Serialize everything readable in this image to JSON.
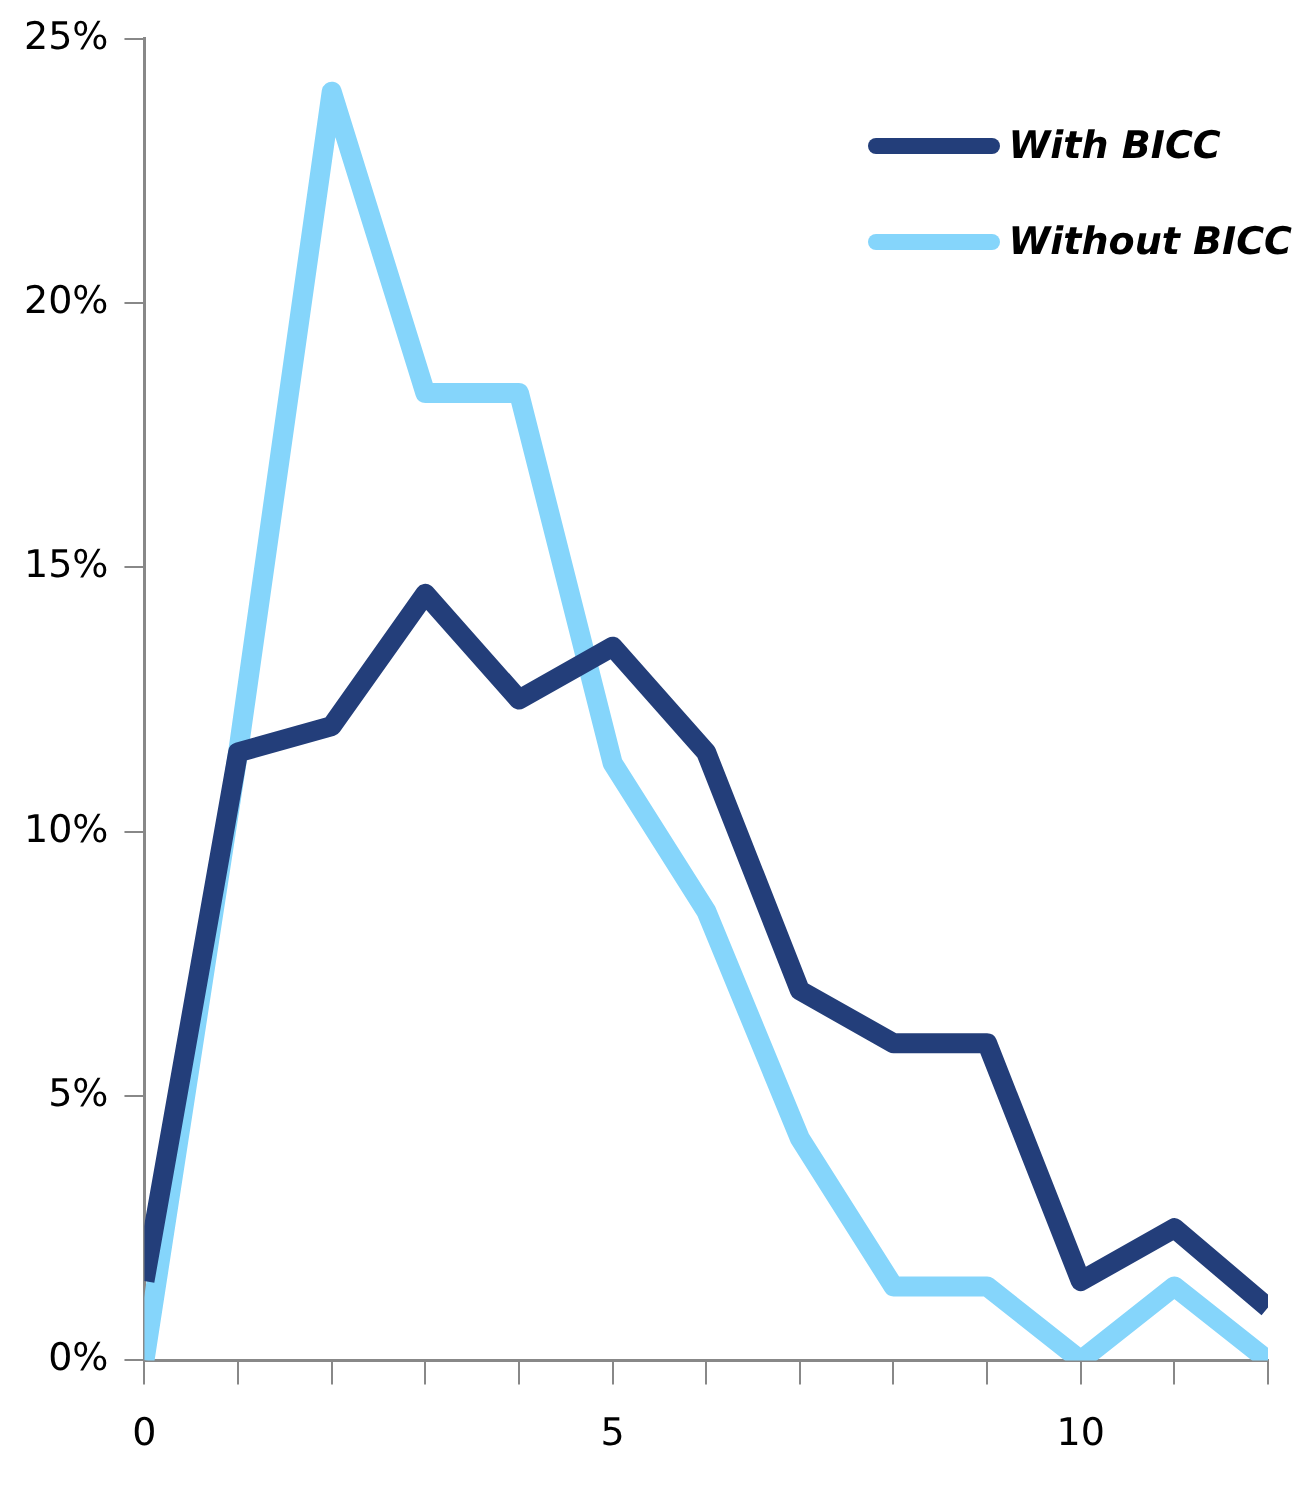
{
  "chart_data": {
    "type": "line",
    "x": [
      0,
      1,
      2,
      3,
      4,
      5,
      6,
      7,
      8,
      9,
      10,
      11,
      12
    ],
    "series": [
      {
        "name": "With BICC",
        "color": "#233e7a",
        "values": [
          1.5,
          11.5,
          12,
          14.5,
          12.5,
          13.5,
          11.5,
          7,
          6,
          6,
          1.5,
          2.5,
          1
        ]
      },
      {
        "name": "Without BICC",
        "color": "#85d5fb",
        "values": [
          0,
          11.5,
          24,
          18.3,
          18.3,
          11.3,
          8.5,
          4.2,
          1.4,
          1.4,
          0,
          1.4,
          0
        ]
      }
    ],
    "xlim": [
      0,
      12
    ],
    "xticks": [
      0,
      {
        "value": 1,
        "label": null
      },
      {
        "value": 2,
        "label": null
      },
      {
        "value": 3,
        "label": null
      },
      {
        "value": 4,
        "label": null
      },
      5,
      {
        "value": 6,
        "label": null
      },
      {
        "value": 7,
        "label": null
      },
      {
        "value": 8,
        "label": null
      },
      {
        "value": 9,
        "label": null
      },
      10,
      {
        "value": 11,
        "label": null
      },
      {
        "value": 12,
        "label": null
      }
    ],
    "ylim": [
      0,
      25
    ],
    "yticks": [
      {
        "value": 0,
        "label": "0%"
      },
      {
        "value": 5,
        "label": "5%"
      },
      {
        "value": 10,
        "label": "10%"
      },
      {
        "value": 15,
        "label": "15%"
      },
      {
        "value": 20,
        "label": "20%"
      },
      {
        "value": 25,
        "label": "25%"
      }
    ],
    "grid": false,
    "legend": "top right",
    "marker": "none",
    "line_style": "solid"
  }
}
